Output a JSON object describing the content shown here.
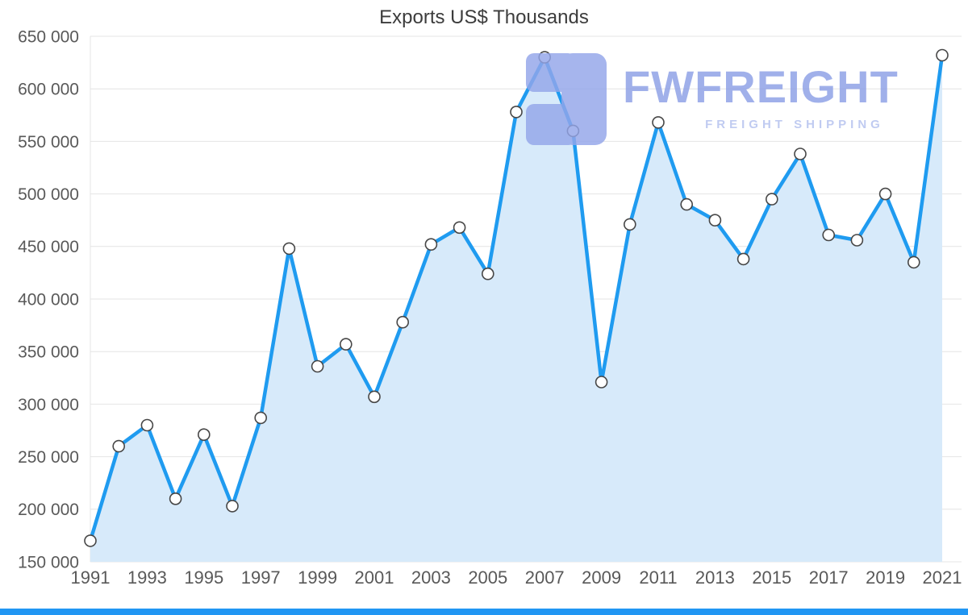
{
  "page": {
    "footer_color": "#2196f3"
  },
  "watermark": {
    "brand": "FWFREIGHT",
    "tagline": "FREIGHT SHIPPING",
    "icon": "fwfreight-logo-icon",
    "icon_color": "#93a6ea",
    "brand_color": "#8c9fe6",
    "tagline_color": "#b3c0ee"
  },
  "chart_data": {
    "type": "area",
    "title": "Exports US$ Thousands",
    "xlabel": "",
    "ylabel": "",
    "grid": "horizontal",
    "legend": "none",
    "ylim": [
      150000,
      650000
    ],
    "x": [
      1991,
      1992,
      1993,
      1994,
      1995,
      1996,
      1997,
      1998,
      1999,
      2000,
      2001,
      2002,
      2003,
      2004,
      2005,
      2006,
      2007,
      2008,
      2009,
      2010,
      2011,
      2012,
      2013,
      2014,
      2015,
      2016,
      2017,
      2018,
      2019,
      2020,
      2021
    ],
    "values": [
      170000,
      260000,
      280000,
      210000,
      271000,
      203000,
      287000,
      448000,
      336000,
      357000,
      307000,
      378000,
      452000,
      468000,
      424000,
      578000,
      630000,
      560000,
      321000,
      471000,
      568000,
      490000,
      475000,
      438000,
      495000,
      538000,
      461000,
      456000,
      500000,
      435000,
      632000
    ],
    "yticks": [
      {
        "value": 150000,
        "label": "150 000"
      },
      {
        "value": 200000,
        "label": "200 000"
      },
      {
        "value": 250000,
        "label": "250 000"
      },
      {
        "value": 300000,
        "label": "300 000"
      },
      {
        "value": 350000,
        "label": "350 000"
      },
      {
        "value": 400000,
        "label": "400 000"
      },
      {
        "value": 450000,
        "label": "450 000"
      },
      {
        "value": 500000,
        "label": "500 000"
      },
      {
        "value": 550000,
        "label": "550 000"
      },
      {
        "value": 600000,
        "label": "600 000"
      },
      {
        "value": 650000,
        "label": "650 000"
      }
    ],
    "xticks": [
      {
        "value": 1991,
        "label": "1991"
      },
      {
        "value": 1993,
        "label": "1993"
      },
      {
        "value": 1995,
        "label": "1995"
      },
      {
        "value": 1997,
        "label": "1997"
      },
      {
        "value": 1999,
        "label": "1999"
      },
      {
        "value": 2001,
        "label": "2001"
      },
      {
        "value": 2003,
        "label": "2003"
      },
      {
        "value": 2005,
        "label": "2005"
      },
      {
        "value": 2007,
        "label": "2007"
      },
      {
        "value": 2009,
        "label": "2009"
      },
      {
        "value": 2011,
        "label": "2011"
      },
      {
        "value": 2013,
        "label": "2013"
      },
      {
        "value": 2015,
        "label": "2015"
      },
      {
        "value": 2017,
        "label": "2017"
      },
      {
        "value": 2019,
        "label": "2019"
      },
      {
        "value": 2021,
        "label": "2021"
      }
    ],
    "colors": {
      "line": "#1f9bf0",
      "fill": "#d7eafa",
      "marker_fill": "#ffffff",
      "marker_stroke": "#474747",
      "grid": "#e4e4e4",
      "tick_text": "#595959",
      "title_text": "#3c3c3c"
    }
  }
}
